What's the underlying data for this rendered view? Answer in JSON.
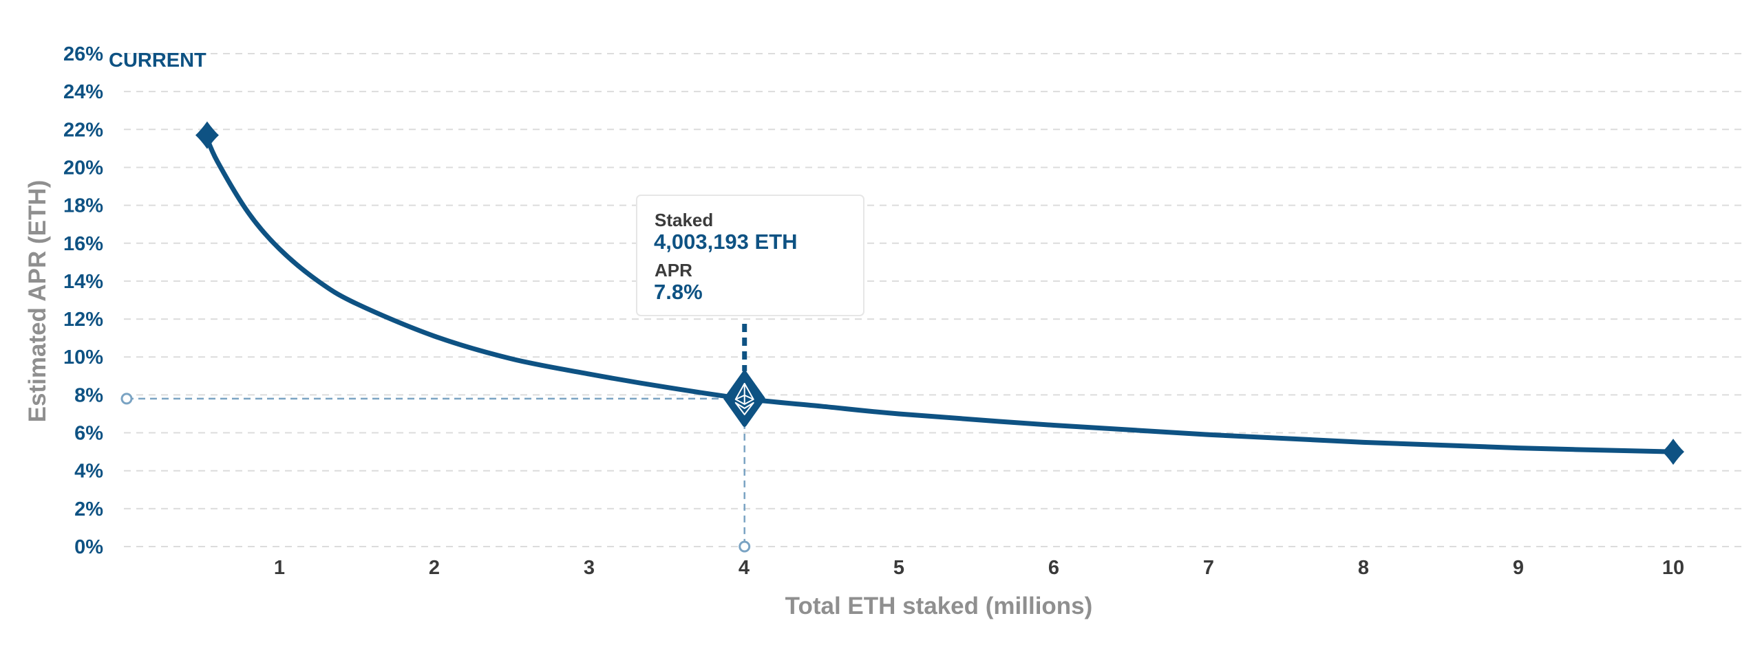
{
  "chart_data": {
    "type": "line",
    "title": "",
    "xlabel": "Total ETH staked (millions)",
    "ylabel": "Estimated APR (ETH)",
    "xlim": [
      0,
      10.2
    ],
    "ylim": [
      0,
      26
    ],
    "x_ticks": [
      1,
      2,
      3,
      4,
      5,
      6,
      7,
      8,
      9,
      10
    ],
    "x_tick_labels": [
      "1",
      "2",
      "3",
      "4",
      "5",
      "6",
      "7",
      "8",
      "9",
      "10"
    ],
    "y_ticks": [
      0,
      2,
      4,
      6,
      8,
      10,
      12,
      14,
      16,
      18,
      20,
      22,
      24,
      26
    ],
    "y_tick_labels": [
      "0%",
      "2%",
      "4%",
      "6%",
      "8%",
      "10%",
      "12%",
      "14%",
      "16%",
      "18%",
      "20%",
      "22%",
      "24%",
      "26%"
    ],
    "grid": true,
    "series": [
      {
        "x": [
          0.524288,
          0.6,
          0.8,
          1.0,
          1.25,
          1.5,
          2.0,
          2.5,
          3.0,
          3.5,
          4.0,
          4.5,
          5.0,
          6.0,
          7.0,
          8.0,
          9.0,
          10.0
        ],
        "values": [
          21.7,
          20.3,
          17.6,
          15.7,
          14.0,
          12.8,
          11.1,
          9.9,
          9.1,
          8.4,
          7.8,
          7.4,
          7.0,
          6.4,
          5.9,
          5.5,
          5.2,
          5.0
        ],
        "color": "#0e5283"
      }
    ],
    "current_label": "CURRENT",
    "current_point": {
      "x": 4.003193,
      "y": 7.8
    },
    "tooltip": {
      "staked_label": "Staked",
      "staked_value": "4,003,193 ETH",
      "apr_label": "APR",
      "apr_value": "7.8%"
    },
    "colors": {
      "line": "#0e5283",
      "guide": "#7aa3c3",
      "grid": "#dcdcdc"
    }
  }
}
